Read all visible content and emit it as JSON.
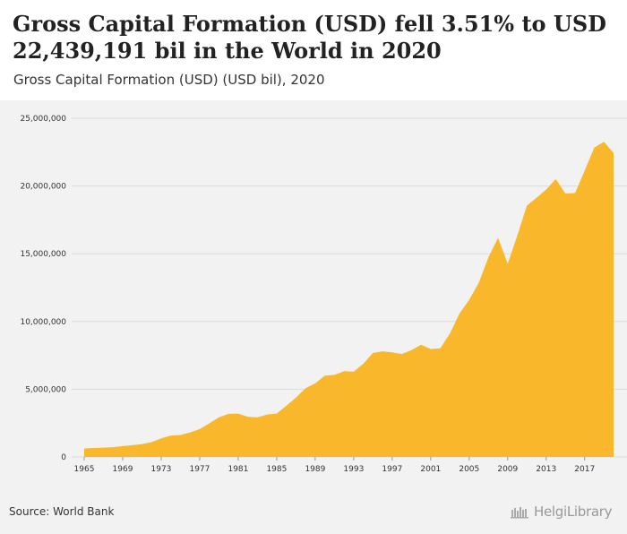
{
  "header": {
    "title": "Gross Capital Formation (USD) fell 3.51% to USD 22,439,191 bil in the World in 2020",
    "subtitle": "Gross Capital Formation (USD) (USD bil), 2020"
  },
  "footer": {
    "source": "Source: World Bank",
    "brand": "HelgiLibrary"
  },
  "colors": {
    "area_fill": "#f9b82b",
    "grid": "#dcdcdc",
    "background": "#f2f2f2"
  },
  "chart_data": {
    "type": "area",
    "title": "Gross Capital Formation (USD) fell 3.51% to USD 22,439,191 bil in the World in 2020",
    "subtitle": "Gross Capital Formation (USD) (USD bil), 2020",
    "xlabel": "",
    "ylabel": "",
    "ylim": [
      0,
      25000000
    ],
    "xlim": [
      1965,
      2020
    ],
    "grid": true,
    "y_ticks": [
      0,
      5000000,
      10000000,
      15000000,
      20000000,
      25000000
    ],
    "y_tick_labels": [
      "0",
      "5,000,000",
      "10,000,000",
      "15,000,000",
      "20,000,000",
      "25,000,000"
    ],
    "x_ticks": [
      1965,
      1969,
      1973,
      1977,
      1981,
      1985,
      1989,
      1993,
      1997,
      2001,
      2005,
      2009,
      2013,
      2017
    ],
    "x_tick_labels": [
      "1965",
      "1969",
      "1973",
      "1977",
      "1981",
      "1985",
      "1989",
      "1993",
      "1997",
      "2001",
      "2005",
      "2009",
      "2013",
      "2017"
    ],
    "x": [
      1965,
      1966,
      1967,
      1968,
      1969,
      1970,
      1971,
      1972,
      1973,
      1974,
      1975,
      1976,
      1977,
      1978,
      1979,
      1980,
      1981,
      1982,
      1983,
      1984,
      1985,
      1986,
      1987,
      1988,
      1989,
      1990,
      1991,
      1992,
      1993,
      1994,
      1995,
      1996,
      1997,
      1998,
      1999,
      2000,
      2001,
      2002,
      2003,
      2004,
      2005,
      2006,
      2007,
      2008,
      2009,
      2010,
      2011,
      2012,
      2013,
      2014,
      2015,
      2016,
      2017,
      2018,
      2019,
      2020
    ],
    "values": [
      620000,
      660000,
      690000,
      720000,
      800000,
      870000,
      950000,
      1090000,
      1370000,
      1580000,
      1620000,
      1810000,
      2060000,
      2480000,
      2930000,
      3180000,
      3200000,
      2970000,
      2930000,
      3130000,
      3200000,
      3780000,
      4370000,
      5080000,
      5430000,
      6000000,
      6060000,
      6330000,
      6300000,
      6880000,
      7680000,
      7800000,
      7720000,
      7600000,
      7890000,
      8280000,
      7960000,
      8020000,
      9120000,
      10600000,
      11600000,
      12860000,
      14740000,
      16170000,
      14260000,
      16350000,
      18560000,
      19130000,
      19740000,
      20510000,
      19440000,
      19480000,
      21140000,
      22840000,
      23260000,
      22439191
    ]
  }
}
